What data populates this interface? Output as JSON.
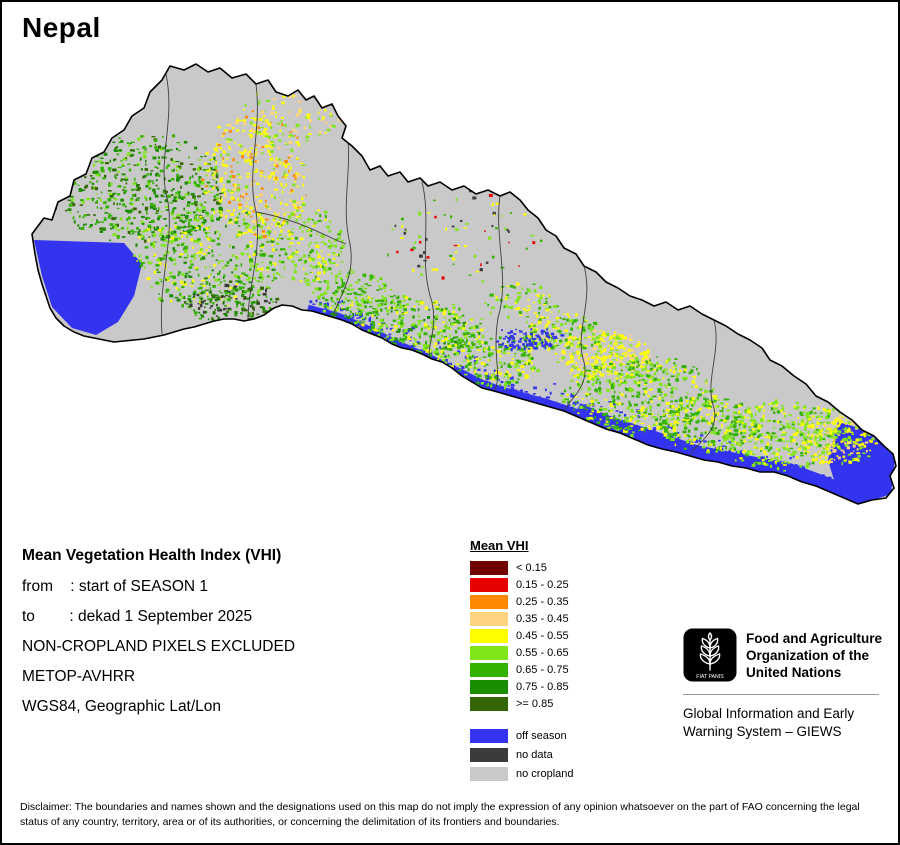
{
  "title": "Nepal",
  "info": {
    "heading": "Mean Vegetation Health Index (VHI)",
    "lines": [
      "from    : start of SEASON 1",
      "to        : dekad 1 September 2025",
      "NON-CROPLAND PIXELS EXCLUDED",
      "METOP-AVHRR",
      "WGS84, Geographic Lat/Lon"
    ]
  },
  "legend": {
    "title": "Mean VHI",
    "classes": [
      {
        "label": "< 0.15",
        "color": "#730000"
      },
      {
        "label": "0.15 - 0.25",
        "color": "#e60000"
      },
      {
        "label": "0.25 - 0.35",
        "color": "#ff8800"
      },
      {
        "label": "0.35 - 0.45",
        "color": "#ffd37f"
      },
      {
        "label": "0.45 - 0.55",
        "color": "#ffff00"
      },
      {
        "label": "0.55 - 0.65",
        "color": "#80e519"
      },
      {
        "label": "0.65 - 0.75",
        "color": "#33b300"
      },
      {
        "label": "0.75 - 0.85",
        "color": "#1a8c00"
      },
      {
        "label": ">= 0.85",
        "color": "#336600"
      }
    ],
    "extras": [
      {
        "label": "off season",
        "color": "#3333f0"
      },
      {
        "label": "no data",
        "color": "#3b3b3b"
      },
      {
        "label": "no cropland",
        "color": "#c9c9c9"
      }
    ]
  },
  "fao": {
    "motto": "FIAT PANIS",
    "org_name": "Food and Agriculture\nOrganization of the\nUnited Nations",
    "giews": "Global Information and Early\nWarning System – GIEWS"
  },
  "map": {
    "country": "Nepal",
    "background_color": "#c9c9c9",
    "border_color": "#000000"
  },
  "disclaimer": "Disclaimer: The boundaries and names shown and the designations used on this map do not imply the expression of any opinion whatsoever on the part of FAO concerning the legal status of any country, territory, area or of its authorities, or concerning the delimitation of its frontiers and boundaries."
}
